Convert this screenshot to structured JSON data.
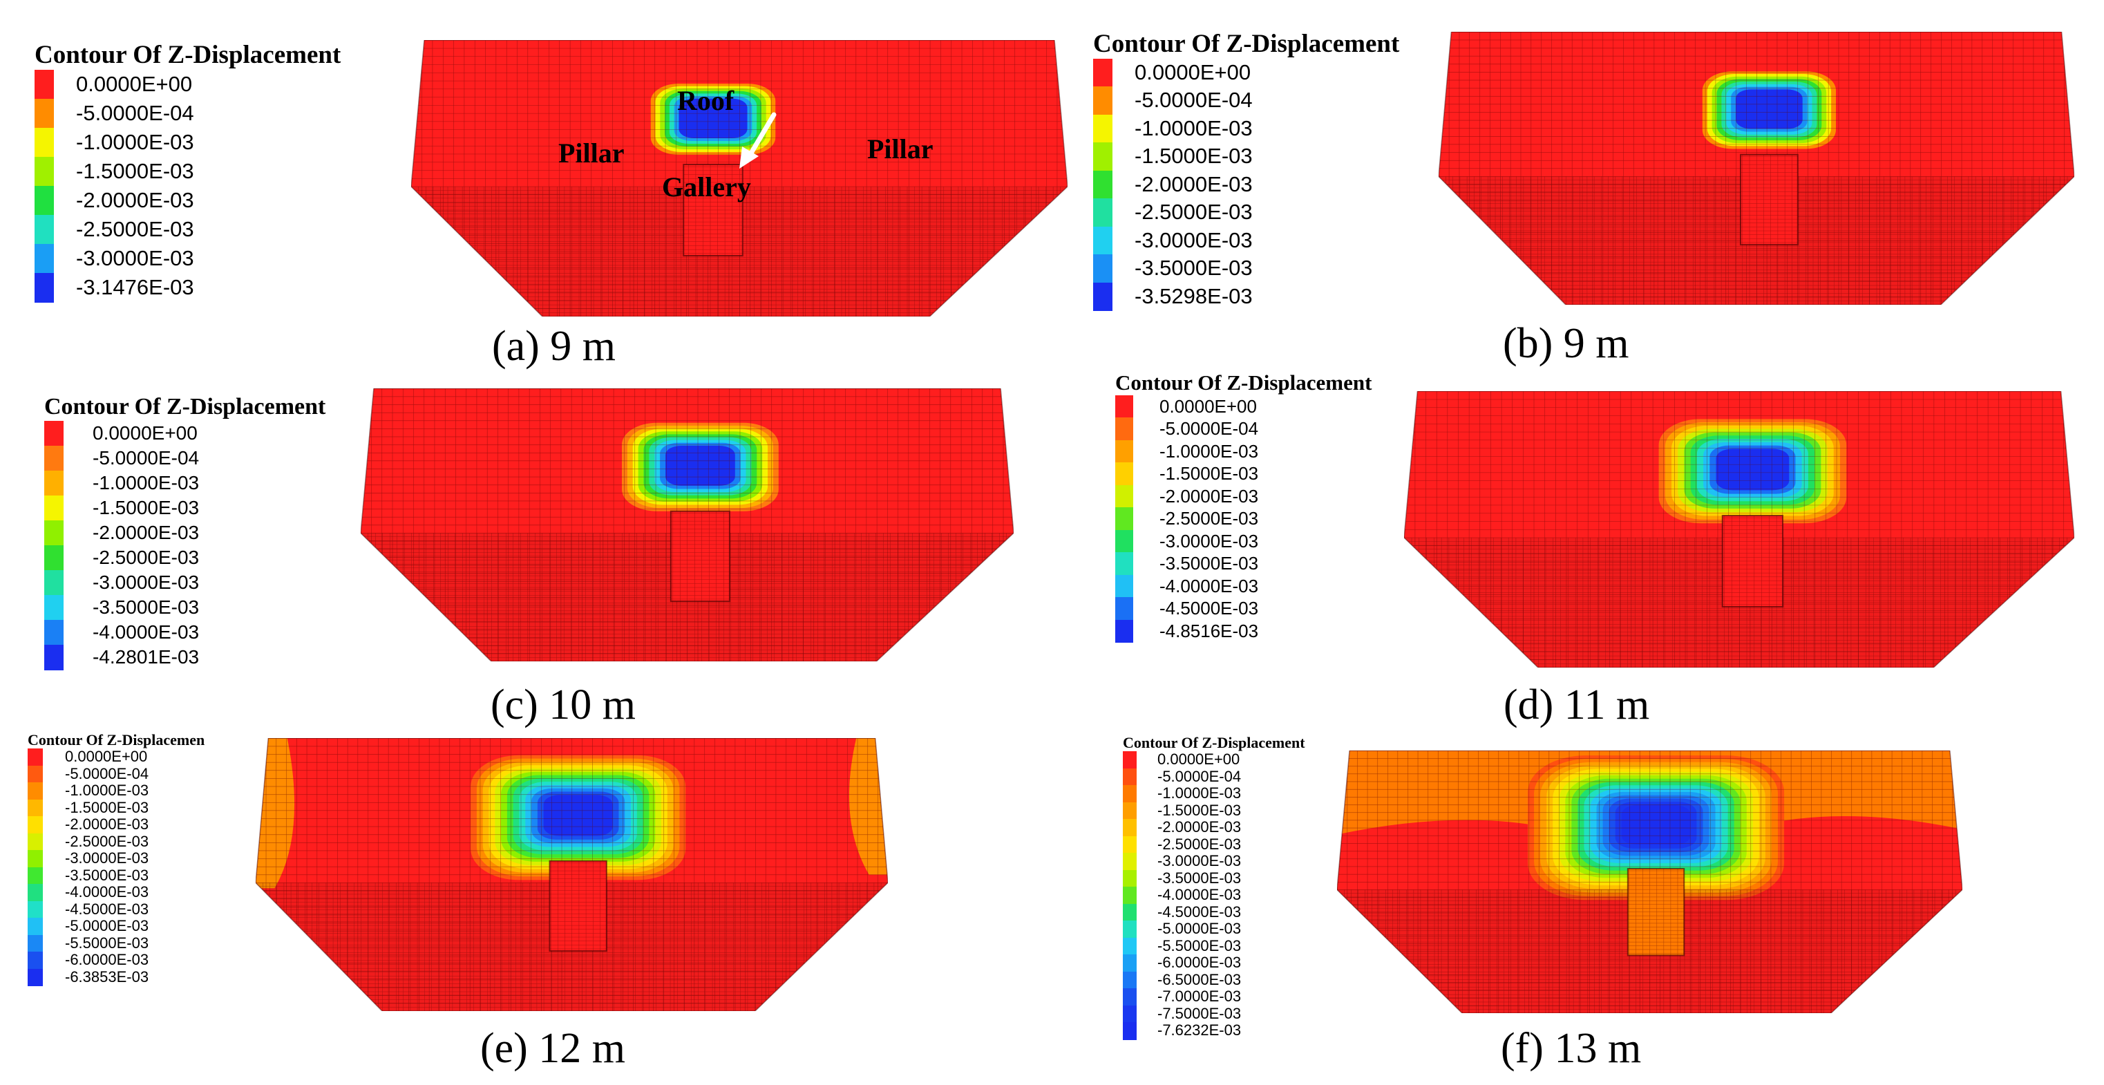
{
  "panels": [
    {
      "id": "a",
      "caption": "(a) 9 m",
      "legend_title": "Contour Of Z-Displacement",
      "levels": [
        "0.0000E+00",
        "-5.0000E-04",
        "-1.0000E-03",
        "-1.5000E-03",
        "-2.0000E-03",
        "-2.5000E-03",
        "-3.0000E-03",
        "-3.1476E-03"
      ],
      "colors": [
        "#ff1e1e",
        "#ff8c00",
        "#f5f500",
        "#a0f000",
        "#20e040",
        "#20e0c0",
        "#1a9ef5",
        "#1a2ef0"
      ],
      "annotations": {
        "roof": "Roof",
        "pillar_left": "Pillar",
        "pillar_right": "Pillar",
        "gallery": "Gallery"
      }
    },
    {
      "id": "b",
      "caption": "(b) 9 m",
      "legend_title": "Contour Of Z-Displacement",
      "levels": [
        "0.0000E+00",
        "-5.0000E-04",
        "-1.0000E-03",
        "-1.5000E-03",
        "-2.0000E-03",
        "-2.5000E-03",
        "-3.0000E-03",
        "-3.5000E-03",
        "-3.5298E-03"
      ],
      "colors": [
        "#ff1e1e",
        "#ff8c00",
        "#f5f500",
        "#a0f000",
        "#30e030",
        "#20e0a0",
        "#20d0f0",
        "#1a90f5",
        "#1a2ef0"
      ]
    },
    {
      "id": "c",
      "caption": "(c) 10 m",
      "legend_title": "Contour Of Z-Displacement",
      "levels": [
        "0.0000E+00",
        "-5.0000E-04",
        "-1.0000E-03",
        "-1.5000E-03",
        "-2.0000E-03",
        "-2.5000E-03",
        "-3.0000E-03",
        "-3.5000E-03",
        "-4.0000E-03",
        "-4.2801E-03"
      ],
      "colors": [
        "#ff1e1e",
        "#ff7a10",
        "#ffb000",
        "#f5f500",
        "#90f000",
        "#30e030",
        "#20e0a0",
        "#20d0f0",
        "#1a80f5",
        "#1a2ef0"
      ]
    },
    {
      "id": "d",
      "caption": "(d) 11 m",
      "legend_title": "Contour Of Z-Displacement",
      "levels": [
        "0.0000E+00",
        "-5.0000E-04",
        "-1.0000E-03",
        "-1.5000E-03",
        "-2.0000E-03",
        "-2.5000E-03",
        "-3.0000E-03",
        "-3.5000E-03",
        "-4.0000E-03",
        "-4.5000E-03",
        "-4.8516E-03"
      ],
      "colors": [
        "#ff1e1e",
        "#ff6a10",
        "#ffa000",
        "#ffd000",
        "#d0f000",
        "#60e820",
        "#20e060",
        "#20e0c0",
        "#20c0f5",
        "#1a70f5",
        "#1a2ef0"
      ]
    },
    {
      "id": "e",
      "caption": "(e) 12 m",
      "legend_title": "Contour Of Z-Displacemen",
      "levels": [
        "0.0000E+00",
        "-5.0000E-04",
        "-1.0000E-03",
        "-1.5000E-03",
        "-2.0000E-03",
        "-2.5000E-03",
        "-3.0000E-03",
        "-3.5000E-03",
        "-4.0000E-03",
        "-4.5000E-03",
        "-5.0000E-03",
        "-5.5000E-03",
        "-6.0000E-03",
        "-6.3853E-03"
      ],
      "colors": [
        "#ff1e1e",
        "#ff5a10",
        "#ff8c00",
        "#ffb800",
        "#ffe000",
        "#d8f000",
        "#90f000",
        "#40e830",
        "#20e080",
        "#20e0c8",
        "#20c0f5",
        "#1a88f5",
        "#1a50f0",
        "#1a2ef0"
      ]
    },
    {
      "id": "f",
      "caption": "(f) 13 m",
      "legend_title": "Contour Of Z-Displacement",
      "levels": [
        "0.0000E+00",
        "-5.0000E-04",
        "-1.0000E-03",
        "-1.5000E-03",
        "-2.0000E-03",
        "-2.5000E-03",
        "-3.0000E-03",
        "-3.5000E-03",
        "-4.0000E-03",
        "-4.5000E-03",
        "-5.0000E-03",
        "-5.5000E-03",
        "-6.0000E-03",
        "-6.5000E-03",
        "-7.0000E-03",
        "-7.5000E-03",
        "-7.6232E-03"
      ],
      "colors": [
        "#ff1e1e",
        "#ff5010",
        "#ff7a00",
        "#ff9e00",
        "#ffc000",
        "#ffe000",
        "#e0f000",
        "#a8f000",
        "#60e820",
        "#20e070",
        "#20e0c0",
        "#20c8f5",
        "#1aa0f5",
        "#1a78f5",
        "#1a50f0",
        "#1a38f0",
        "#1a2ef0"
      ]
    }
  ]
}
